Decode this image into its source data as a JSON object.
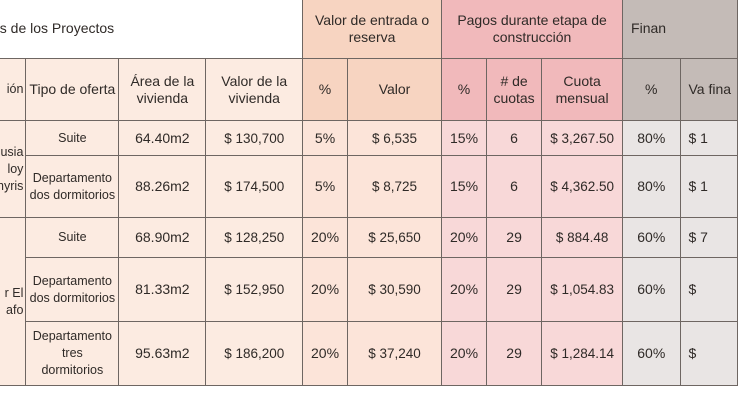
{
  "header": {
    "group_projects": "es de los Proyectos",
    "group_entry": "Valor de entrada o reserva",
    "group_construction": "Pagos durante etapa de construcción",
    "group_finance": "Finan"
  },
  "columns": {
    "project": "ión",
    "offer_type": "Tipo de oferta",
    "area": "Área de la vivienda",
    "value": "Valor de la vivienda",
    "entry_pct": "%",
    "entry_value": "Valor",
    "const_pct": "%",
    "quota_count": "# de cuotas",
    "monthly_quota": "Cuota mensual",
    "fin_pct": "%",
    "fin_value": "Va fina"
  },
  "projects": [
    {
      "name": "usia loy hyris"
    },
    {
      "name": "r El afo"
    }
  ],
  "rows": [
    {
      "type": "Suite",
      "area": "64.40m2",
      "value": "$ 130,700",
      "entry_pct": "5%",
      "entry_value": "$ 6,535",
      "const_pct": "15%",
      "quotas": "6",
      "monthly": "$ 3,267.50",
      "fin_pct": "80%",
      "fin_value": "$ 1"
    },
    {
      "type": "Departamento dos dormitorios",
      "area": "88.26m2",
      "value": "$ 174,500",
      "entry_pct": "5%",
      "entry_value": "$ 8,725",
      "const_pct": "15%",
      "quotas": "6",
      "monthly": "$ 4,362.50",
      "fin_pct": "80%",
      "fin_value": "$ 1"
    },
    {
      "type": "Suite",
      "area": "68.90m2",
      "value": "$ 128,250",
      "entry_pct": "20%",
      "entry_value": "$ 25,650",
      "const_pct": "20%",
      "quotas": "29",
      "monthly": "$ 884.48",
      "fin_pct": "60%",
      "fin_value": "$ 7"
    },
    {
      "type": "Departamento dos dormitorios",
      "area": "81.33m2",
      "value": "$ 152,950",
      "entry_pct": "20%",
      "entry_value": "$ 30,590",
      "const_pct": "20%",
      "quotas": "29",
      "monthly": "$ 1,054.83",
      "fin_pct": "60%",
      "fin_value": "$"
    },
    {
      "type": "Departamento tres dormitorios",
      "area": "95.63m2",
      "value": "$ 186,200",
      "entry_pct": "20%",
      "entry_value": "$ 37,240",
      "const_pct": "20%",
      "quotas": "29",
      "monthly": "$ 1,284.14",
      "fin_pct": "60%",
      "fin_value": "$"
    }
  ],
  "colors": {
    "peach": "#f7d4c1",
    "pink": "#f1b9bb",
    "grey": "#c4bbb7",
    "cream": "#fcebe1",
    "border": "#6e6662"
  }
}
